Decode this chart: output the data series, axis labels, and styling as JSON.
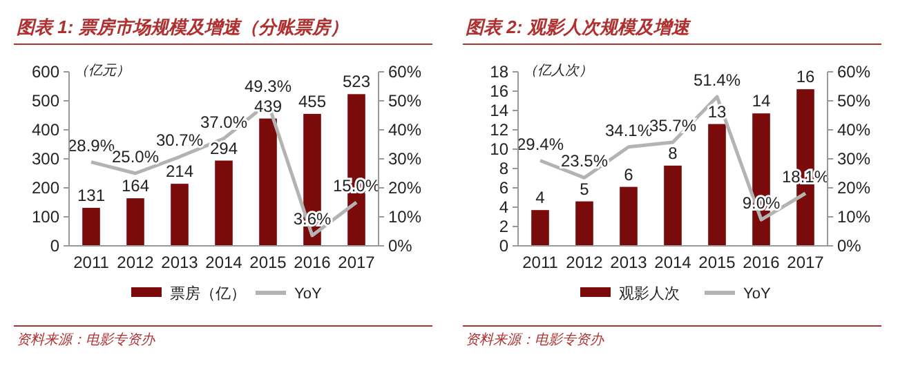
{
  "chart_data": [
    {
      "type": "bar",
      "title": "图表 1: 票房市场规模及增速（分账票房）",
      "ylabel": "（亿元）",
      "categories": [
        "2011",
        "2012",
        "2013",
        "2014",
        "2015",
        "2016",
        "2017"
      ],
      "series": [
        {
          "name": "票房（亿）",
          "color": "#7b0a0a",
          "values": [
            131,
            164,
            214,
            294,
            439,
            455,
            523
          ],
          "data_labels": true
        },
        {
          "name": "YoY",
          "type": "line",
          "axis": "y2",
          "color": "#b3b3b3",
          "values": [
            28.9,
            25.0,
            30.7,
            37.0,
            49.3,
            3.6,
            15.0
          ],
          "value_labels": [
            "28.9%",
            "25.0%",
            "30.7%",
            "37.0%",
            "49.3%",
            "3.6%",
            "15.0%"
          ]
        }
      ],
      "ylim": [
        0,
        600
      ],
      "yticks": [
        0,
        100,
        200,
        300,
        400,
        500,
        600
      ],
      "y2lim": [
        0,
        60
      ],
      "y2ticks": [
        {
          "value": 0,
          "label": "0%"
        },
        {
          "value": 10,
          "label": "10%"
        },
        {
          "value": 20,
          "label": "20%"
        },
        {
          "value": 30,
          "label": "30%"
        },
        {
          "value": 40,
          "label": "40%"
        },
        {
          "value": 50,
          "label": "50%"
        },
        {
          "value": 60,
          "label": "60%"
        }
      ],
      "legend": "bottom",
      "grid": false,
      "annotations": [
        "资料来源：电影专资办"
      ]
    },
    {
      "type": "bar",
      "title": "图表 2: 观影人次规模及增速",
      "ylabel": "（亿人次）",
      "categories": [
        "2011",
        "2012",
        "2013",
        "2014",
        "2015",
        "2016",
        "2017"
      ],
      "series": [
        {
          "name": "观影人次",
          "color": "#7b0a0a",
          "values": [
            3.7,
            4.6,
            6.1,
            8.3,
            12.6,
            13.7,
            16.2
          ],
          "value_labels": [
            "4",
            "5",
            "6",
            "8",
            "13",
            "14",
            "16"
          ]
        },
        {
          "name": "YoY",
          "type": "line",
          "axis": "y2",
          "color": "#b3b3b3",
          "values": [
            29.4,
            23.5,
            34.1,
            35.7,
            51.4,
            9.0,
            18.1
          ],
          "value_labels": [
            "29.4%",
            "23.5%",
            "34.1%",
            "35.7%",
            "51.4%",
            "9.0%",
            "18.1%"
          ]
        }
      ],
      "ylim": [
        0,
        18
      ],
      "yticks": [
        0,
        2,
        4,
        6,
        8,
        10,
        12,
        14,
        16,
        18
      ],
      "y2lim": [
        0,
        60
      ],
      "y2ticks": [
        {
          "value": 0,
          "label": "0%"
        },
        {
          "value": 10,
          "label": "10%"
        },
        {
          "value": 20,
          "label": "20%"
        },
        {
          "value": 30,
          "label": "30%"
        },
        {
          "value": 40,
          "label": "40%"
        },
        {
          "value": 50,
          "label": "50%"
        },
        {
          "value": 60,
          "label": "60%"
        }
      ],
      "legend": "bottom",
      "grid": false,
      "annotations": [
        "资料来源：电影专资办"
      ]
    }
  ]
}
